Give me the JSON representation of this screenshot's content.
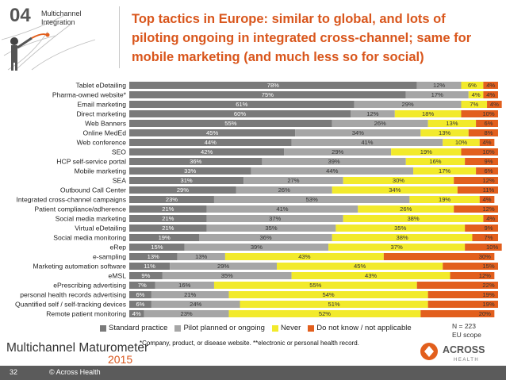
{
  "header": {
    "section_number": "04",
    "section_title_line1": "Multichannel",
    "section_title_line2": "Integration",
    "title_line1": "Top tactics in Europe: similar to global, and lots of",
    "title_line2": "piloting ongoing in integrated cross-channel; same for",
    "title_line3": "mobile marketing (and much less so for social)"
  },
  "colors": {
    "standard": "#7a7a7a",
    "pilot": "#a6a6a6",
    "never": "#f2ea2c",
    "dontknow": "#e25f1d",
    "accent": "#d9561c"
  },
  "chart_data": {
    "type": "bar",
    "orientation": "horizontal",
    "stacked": true,
    "normalized": true,
    "categories": [
      "Tablet eDetailing",
      "Pharma-owned website*",
      "Email marketing",
      "Direct marketing",
      "Web Banners",
      "Online MedEd",
      "Web conference",
      "SEO",
      "HCP self-service portal",
      "Mobile marketing",
      "SEA",
      "Outbound Call Center",
      "Integrated cross-channel campaigns",
      "Patient compliance/adherence",
      "Social media marketing",
      "Virtual eDetailing",
      "Social media monitoring",
      "eRep",
      "e-sampling",
      "Marketing automation software",
      "eMSL",
      "ePrescribing advertising",
      "personal health records advertising",
      "Quantified self / self-tracking devices",
      "Remote patient monitoring"
    ],
    "series": [
      {
        "name": "Standard practice",
        "values": [
          78,
          75,
          61,
          60,
          55,
          45,
          44,
          42,
          36,
          33,
          31,
          29,
          23,
          21,
          21,
          21,
          19,
          15,
          13,
          11,
          9,
          7,
          6,
          6,
          4
        ]
      },
      {
        "name": "Pilot planned or ongoing",
        "values": [
          12,
          17,
          29,
          12,
          26,
          34,
          41,
          29,
          39,
          44,
          27,
          26,
          53,
          41,
          37,
          35,
          36,
          39,
          13,
          29,
          35,
          16,
          21,
          24,
          23
        ]
      },
      {
        "name": "Never",
        "values": [
          6,
          4,
          7,
          18,
          13,
          13,
          10,
          19,
          16,
          17,
          30,
          34,
          19,
          26,
          38,
          35,
          38,
          37,
          43,
          45,
          43,
          55,
          54,
          51,
          52
        ]
      },
      {
        "name": "Do not know / not applicable",
        "values": [
          4,
          4,
          4,
          10,
          6,
          8,
          4,
          10,
          9,
          6,
          12,
          11,
          4,
          12,
          4,
          9,
          7,
          10,
          30,
          15,
          12,
          22,
          19,
          19,
          20
        ]
      }
    ],
    "labels": [
      [
        "78%",
        "12%",
        "6%",
        "4%"
      ],
      [
        "75%",
        "17%",
        "4%",
        "4%"
      ],
      [
        "61%",
        "29%",
        "7%",
        "4%"
      ],
      [
        "60%",
        "12%",
        "18%",
        "10%"
      ],
      [
        "55%",
        "26%",
        "13%",
        "6%"
      ],
      [
        "45%",
        "34%",
        "13%",
        "8%"
      ],
      [
        "44%",
        "41%",
        "10%",
        "4%"
      ],
      [
        "42%",
        "29%",
        "19%",
        "10%"
      ],
      [
        "36%",
        "39%",
        "16%",
        "9%"
      ],
      [
        "33%",
        "44%",
        "17%",
        "6%"
      ],
      [
        "31%",
        "27%",
        "30%",
        "12%"
      ],
      [
        "29%",
        "26%",
        "34%",
        "11%"
      ],
      [
        "23%",
        "53%",
        "19%",
        "4%"
      ],
      [
        "21%",
        "41%",
        "26%",
        "12%"
      ],
      [
        "21%",
        "37%",
        "38%",
        "4%"
      ],
      [
        "21%",
        "35%",
        "35%",
        "9%"
      ],
      [
        "19%",
        "36%",
        "38%",
        "7%"
      ],
      [
        "15%",
        "39%",
        "37%",
        "10%"
      ],
      [
        "13%",
        "13%",
        "43%",
        "30%"
      ],
      [
        "11%",
        "29%",
        "45%",
        "15%"
      ],
      [
        "9%",
        "35%",
        "43%",
        "12%"
      ],
      [
        "7%",
        "16%",
        "55%",
        "22%"
      ],
      [
        "6%",
        "21%",
        "54%",
        "19%"
      ],
      [
        "6%",
        "24%",
        "51%",
        "19%"
      ],
      [
        "4%",
        "23%",
        "52%",
        "20%"
      ]
    ],
    "xlim": [
      0,
      100
    ],
    "title": "",
    "xlabel": "",
    "ylabel": ""
  },
  "legend": {
    "standard": "Standard practice",
    "pilot": "Pilot planned or ongoing",
    "never": "Never",
    "dontknow": "Do not know / not applicable"
  },
  "notes": {
    "n_line1": "N = 223",
    "n_line2": "EU scope",
    "footnote": "*Company, product, or disease website. **electronic or personal health record."
  },
  "footer": {
    "brand_text": "Multichannel Maturometer",
    "brand_year": "2015",
    "logo_text": "ACROSS",
    "logo_subtext": "HEALTH",
    "page_number": "32",
    "copyright": "© Across Health"
  }
}
